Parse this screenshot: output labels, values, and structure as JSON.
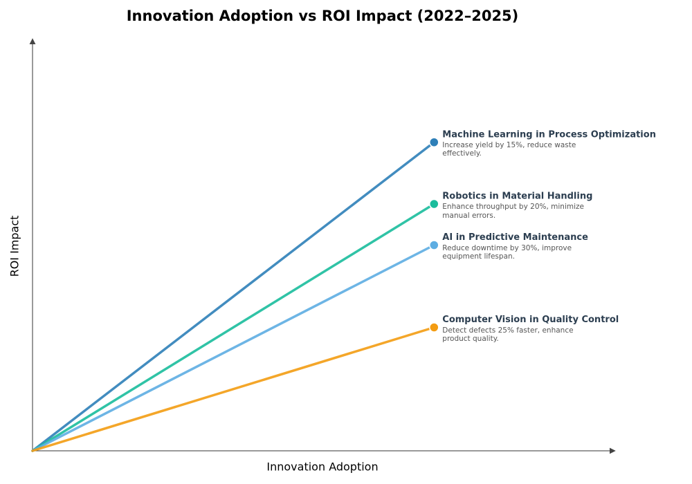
{
  "chart_data": {
    "type": "line",
    "title": "Innovation Adoption vs ROI Impact (2022–2025)",
    "x_label": "Innovation Adoption",
    "y_label": "ROI Impact",
    "x": [
      0,
      0.69
    ],
    "xlim": [
      0,
      1
    ],
    "ylim": [
      0,
      1
    ],
    "series": [
      {
        "name": "Machine Learning in Process Optimization",
        "description": "Increase yield by 15%, reduce waste effectively.",
        "color": "#2e7fb8",
        "values": [
          0,
          0.75
        ]
      },
      {
        "name": "Robotics in Material Handling",
        "description": "Enhance throughput by 20%, minimize manual errors.",
        "color": "#1abc9c",
        "values": [
          0,
          0.6
        ]
      },
      {
        "name": "AI in Predictive Maintenance",
        "description": "Reduce downtime by 30%, improve equipment lifespan.",
        "color": "#5dade2",
        "values": [
          0,
          0.5
        ]
      },
      {
        "name": "Computer Vision in Quality Control",
        "description": "Detect defects 25% faster, enhance product quality.",
        "color": "#f39c12",
        "values": [
          0,
          0.3
        ]
      }
    ]
  }
}
